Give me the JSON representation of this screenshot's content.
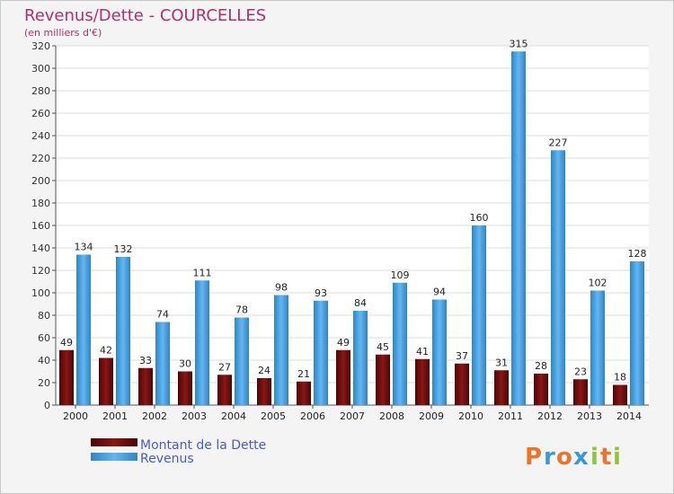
{
  "chart_data": {
    "type": "bar",
    "title": "Revenus/Dette - COURCELLES",
    "subtitle": "(en milliers d'€)",
    "categories": [
      "2000",
      "2001",
      "2002",
      "2003",
      "2004",
      "2005",
      "2006",
      "2007",
      "2008",
      "2009",
      "2010",
      "2011",
      "2012",
      "2013",
      "2014"
    ],
    "series": [
      {
        "name": "Montant de la Dette",
        "color": "#7a1010",
        "values": [
          49,
          42,
          33,
          30,
          27,
          24,
          21,
          49,
          45,
          41,
          37,
          31,
          28,
          23,
          18
        ]
      },
      {
        "name": "Revenus",
        "color": "#4aa3e3",
        "values": [
          134,
          132,
          74,
          111,
          78,
          98,
          93,
          84,
          109,
          94,
          160,
          315,
          227,
          102,
          128
        ]
      }
    ],
    "ylim": [
      0,
      320
    ],
    "yticks": [
      0,
      20,
      40,
      60,
      80,
      100,
      120,
      140,
      160,
      180,
      200,
      220,
      240,
      260,
      280,
      300,
      320
    ],
    "grid": true,
    "legend_position": "bottom-left"
  },
  "logo": {
    "letters": [
      "P",
      "r",
      "o",
      "x",
      "i",
      "t",
      "i"
    ],
    "colors": [
      "#e8762b",
      "#3a9ad9",
      "#e8762b",
      "#3a9ad9",
      "#8cc63f",
      "#e8762b",
      "#8cc63f"
    ]
  }
}
